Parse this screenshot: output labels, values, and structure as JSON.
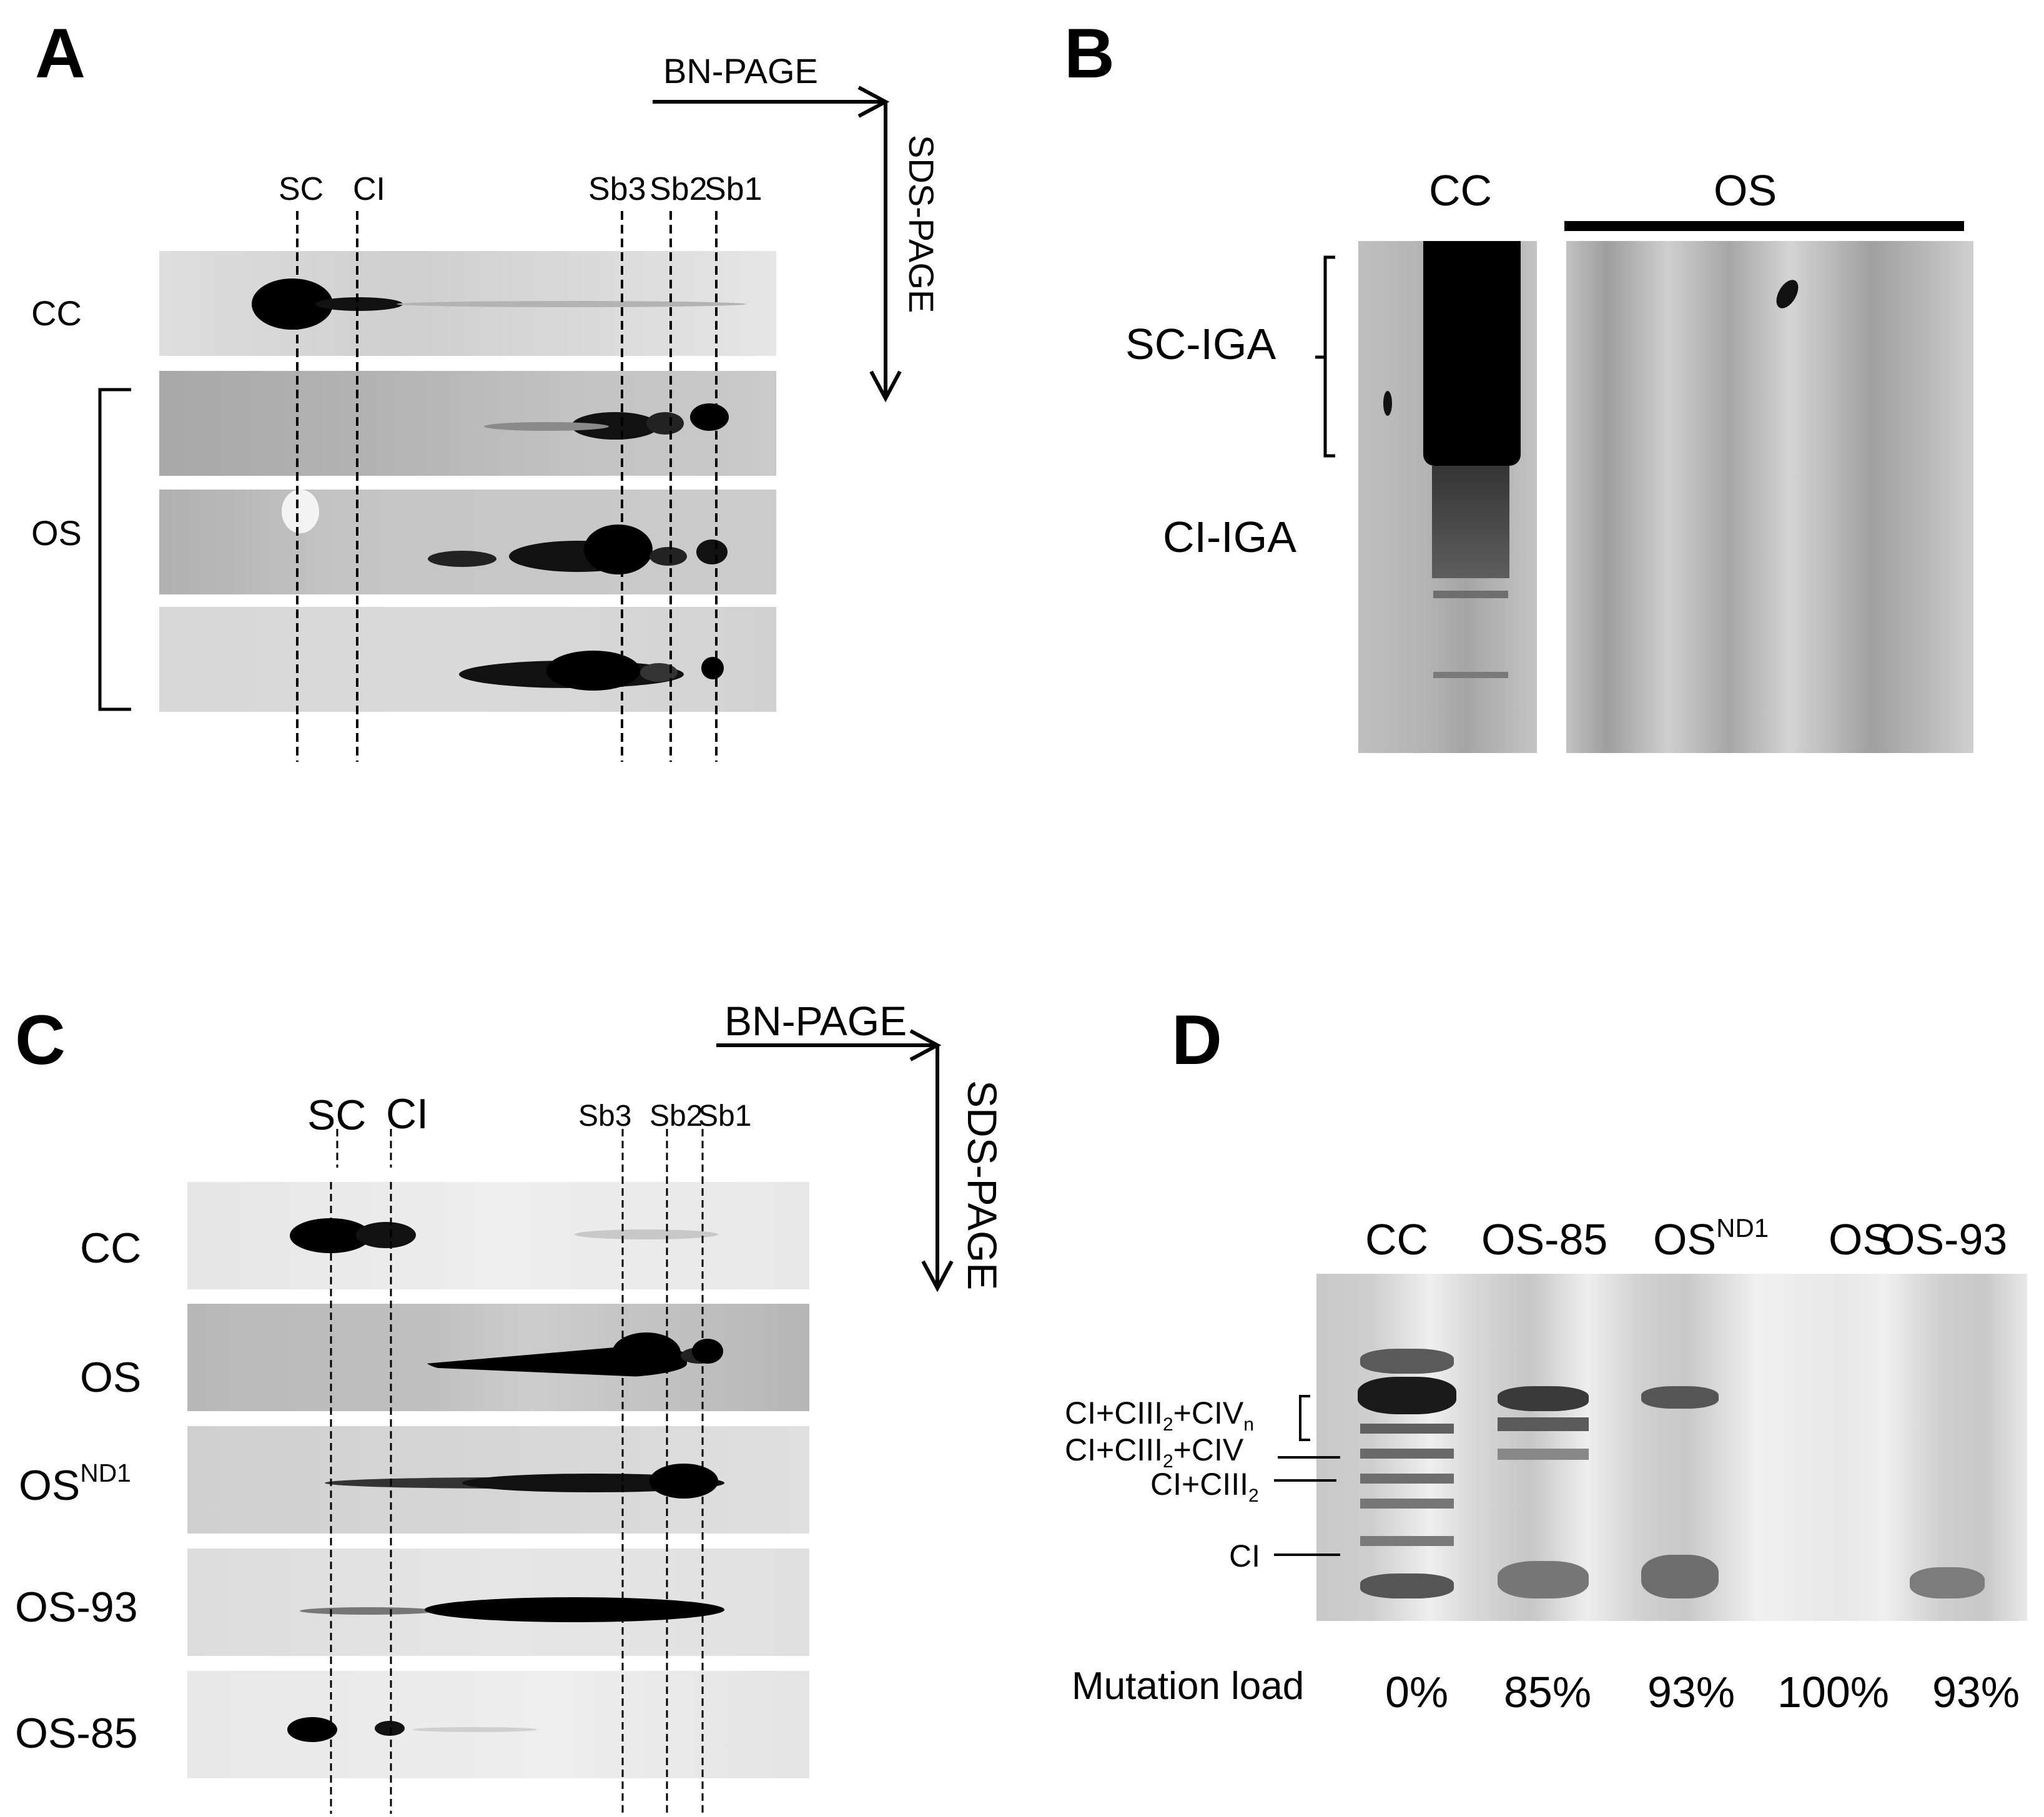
{
  "panel_a": {
    "letter": "A",
    "direction_horizontal": "BN-PAGE",
    "direction_vertical": "SDS-PAGE",
    "column_markers": [
      "SC",
      "CI",
      "Sb3",
      "Sb2",
      "Sb1"
    ],
    "row_labels": [
      "CC",
      "OS"
    ]
  },
  "panel_b": {
    "letter": "B",
    "lane_labels": [
      "CC",
      "OS"
    ],
    "band_labels": [
      "SC-IGA",
      "CI-IGA"
    ]
  },
  "panel_c": {
    "letter": "C",
    "direction_horizontal": "BN-PAGE",
    "direction_vertical": "SDS-PAGE",
    "column_markers_left": [
      "SC",
      "CI"
    ],
    "column_markers_right": [
      "Sb3",
      "Sb2",
      "Sb1"
    ],
    "row_labels": [
      {
        "base": "CC",
        "sup": ""
      },
      {
        "base": "OS",
        "sup": ""
      },
      {
        "base": "OS",
        "sup": "ND1"
      },
      {
        "base": "OS-93",
        "sup": ""
      },
      {
        "base": "OS-85",
        "sup": ""
      }
    ]
  },
  "panel_d": {
    "letter": "D",
    "lanes": [
      {
        "label": "CC",
        "sup": "",
        "mutation_load": "0%"
      },
      {
        "label": "OS-85",
        "sup": "",
        "mutation_load": "85%"
      },
      {
        "label": "OS",
        "sup": "ND1",
        "mutation_load": "93%"
      },
      {
        "label": "OS",
        "sup": "",
        "mutation_load": "100%"
      },
      {
        "label": "OS-93",
        "sup": "",
        "mutation_load": "93%"
      }
    ],
    "band_labels": [
      {
        "text": "CI+CIII",
        "sub": "2",
        "text2": "+CIV",
        "sub2": "n"
      },
      {
        "text": "CI+CIII",
        "sub": "2",
        "text2": "+CIV",
        "sub2": ""
      },
      {
        "text": "CI+CIII",
        "sub": "2",
        "text2": "",
        "sub2": ""
      },
      {
        "text": "CI",
        "sub": "",
        "text2": "",
        "sub2": ""
      }
    ],
    "mutation_load_label": "Mutation load"
  }
}
